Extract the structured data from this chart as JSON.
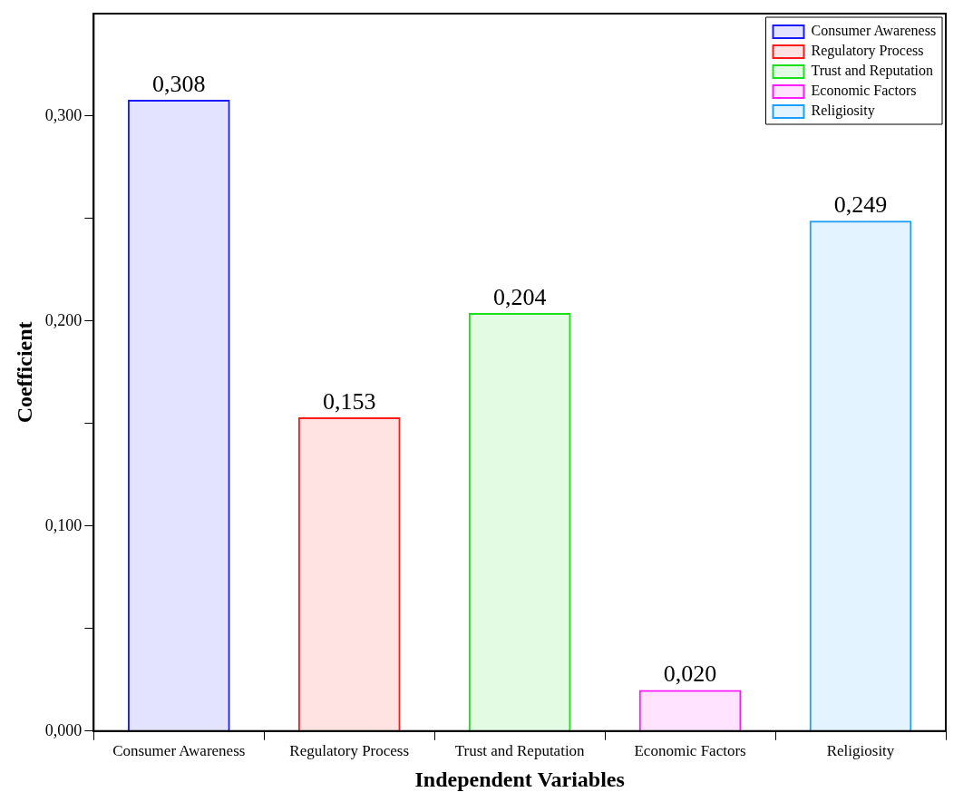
{
  "chart_data": {
    "type": "bar",
    "xlabel": "Independent Variables",
    "ylabel": "Coefficient",
    "categories": [
      "Consumer Awareness",
      "Regulatory Process",
      "Trust and Reputation",
      "Economic Factors",
      "Religiosity"
    ],
    "series": [
      {
        "name": "Consumer Awareness",
        "color": "#1a1aff",
        "values": [
          0.308,
          null,
          null,
          null,
          null
        ],
        "value_labels": [
          "0,308",
          null,
          null,
          null,
          null
        ]
      },
      {
        "name": "Regulatory Process",
        "color": "#ff1a1a",
        "values": [
          null,
          0.153,
          null,
          null,
          null
        ],
        "value_labels": [
          null,
          "0,153",
          null,
          null,
          null
        ]
      },
      {
        "name": "Trust and Reputation",
        "color": "#1adf1a",
        "values": [
          null,
          null,
          0.204,
          null,
          null
        ],
        "value_labels": [
          null,
          null,
          "0,204",
          null,
          null
        ]
      },
      {
        "name": "Economic Factors",
        "color": "#ff1aff",
        "values": [
          null,
          null,
          null,
          0.02,
          null
        ],
        "value_labels": [
          null,
          null,
          null,
          "0,020",
          null
        ]
      },
      {
        "name": "Religiosity",
        "color": "#1a9fff",
        "values": [
          null,
          null,
          null,
          null,
          0.249
        ],
        "value_labels": [
          null,
          null,
          null,
          null,
          "0,249"
        ]
      }
    ],
    "ylim": [
      0,
      0.35
    ],
    "yticks": [
      {
        "value": 0,
        "label": "0,000"
      },
      {
        "value": 0.05,
        "label": null
      },
      {
        "value": 0.1,
        "label": "0,100"
      },
      {
        "value": 0.15,
        "label": null
      },
      {
        "value": 0.2,
        "label": "0,200"
      },
      {
        "value": 0.25,
        "label": null
      },
      {
        "value": 0.3,
        "label": "0,300"
      }
    ],
    "grid": false,
    "legend": "top right"
  }
}
